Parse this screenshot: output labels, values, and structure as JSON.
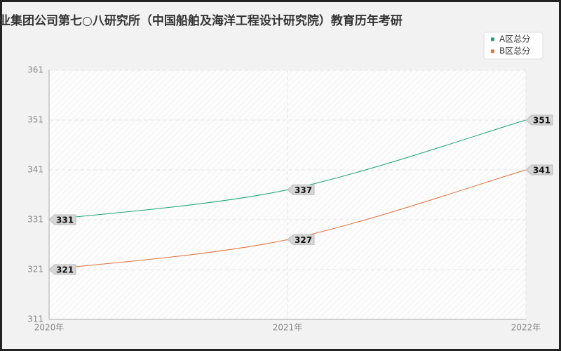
{
  "chart_data": {
    "type": "line",
    "title": "业集团公司第七○八研究所（中国船舶及海洋工程设计研究院）教育历年考研",
    "categories": [
      "2020年",
      "2021年",
      "2022年"
    ],
    "series": [
      {
        "name": "A区总分",
        "color": "#1aa37a",
        "values": [
          331,
          337,
          351
        ]
      },
      {
        "name": "B区总分",
        "color": "#e0703c",
        "values": [
          321,
          327,
          341
        ]
      }
    ],
    "ylim": [
      311,
      361
    ],
    "yticks": [
      311,
      321,
      331,
      341,
      351,
      361
    ],
    "grid": true,
    "legend": "top-right"
  }
}
